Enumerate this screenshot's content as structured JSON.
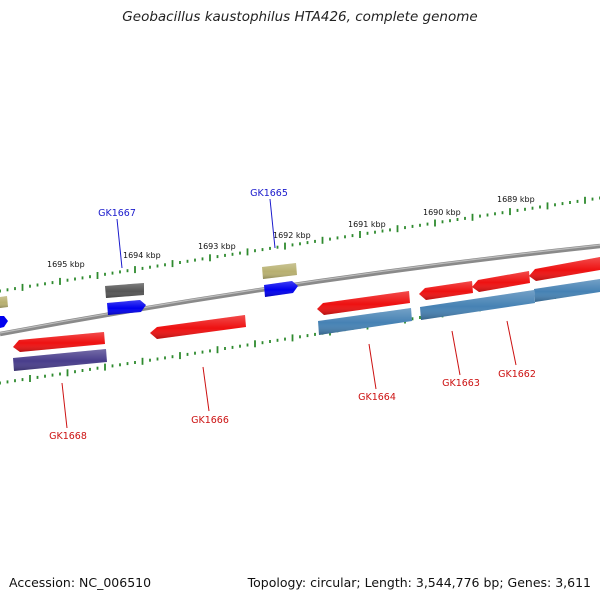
{
  "title": "Geobacillus kaustophilus HTA426, complete genome",
  "footer": {
    "accession": "Accession: NC_006510",
    "topology": "Topology: circular; Length: 3,544,776 bp; Genes: 3,611"
  },
  "colors": {
    "backbone": "#888888",
    "ruler": "#2e8b2e",
    "forward_label": "#1a1acc",
    "reverse_label": "#cc1111",
    "cds_red": "#ee1111",
    "cds_blue": "#0000ee",
    "cds_steelblue": "#4682b4",
    "cds_slate": "#483d8b",
    "cds_grey": "#555555",
    "cds_khaki": "#b8b070"
  },
  "ruler_ticks": [
    {
      "label": "1695 kbp"
    },
    {
      "label": "1694 kbp"
    },
    {
      "label": "1693 kbp"
    },
    {
      "label": "1692 kbp"
    },
    {
      "label": "1691 kbp"
    },
    {
      "label": "1690 kbp"
    },
    {
      "label": "1689 kbp"
    }
  ],
  "gene_labels": [
    {
      "name": "GK1667",
      "strand": "forward"
    },
    {
      "name": "GK1665",
      "strand": "forward"
    },
    {
      "name": "GK1668",
      "strand": "reverse"
    },
    {
      "name": "GK1666",
      "strand": "reverse"
    },
    {
      "name": "GK1664",
      "strand": "reverse"
    },
    {
      "name": "GK1663",
      "strand": "reverse"
    },
    {
      "name": "GK1662",
      "strand": "reverse"
    }
  ]
}
